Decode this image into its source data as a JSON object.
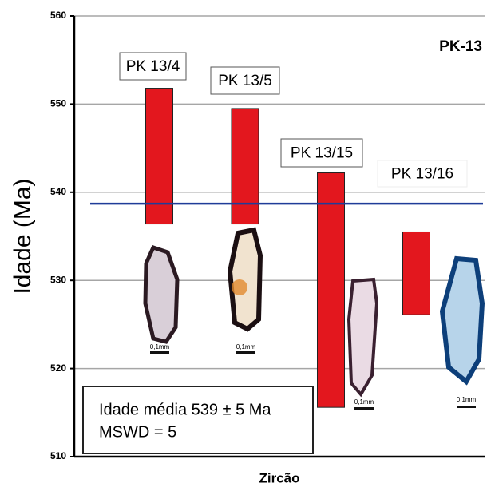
{
  "chart_data": {
    "type": "floating_bar",
    "corner_label": "PK-13",
    "x_label": "Zircão",
    "y_label": "Idade (Ma)",
    "categories": [
      "PK 13/4",
      "PK 13/5",
      "PK 13/15",
      "PK 13/16"
    ],
    "high": [
      551.8,
      549.5,
      542.2,
      535.5
    ],
    "low": [
      536.4,
      536.4,
      515.6,
      526.1
    ],
    "color": "#e3171e",
    "mean": 538.7,
    "mean_color": "#1f3c99",
    "ylim": [
      510,
      560
    ],
    "yticks": [
      510,
      520,
      530,
      540,
      550,
      560
    ],
    "grid": true,
    "annotation": [
      "Idade média 539 ± 5 Ma",
      "MSWD = 5"
    ],
    "scale_label": "0,1mm"
  }
}
